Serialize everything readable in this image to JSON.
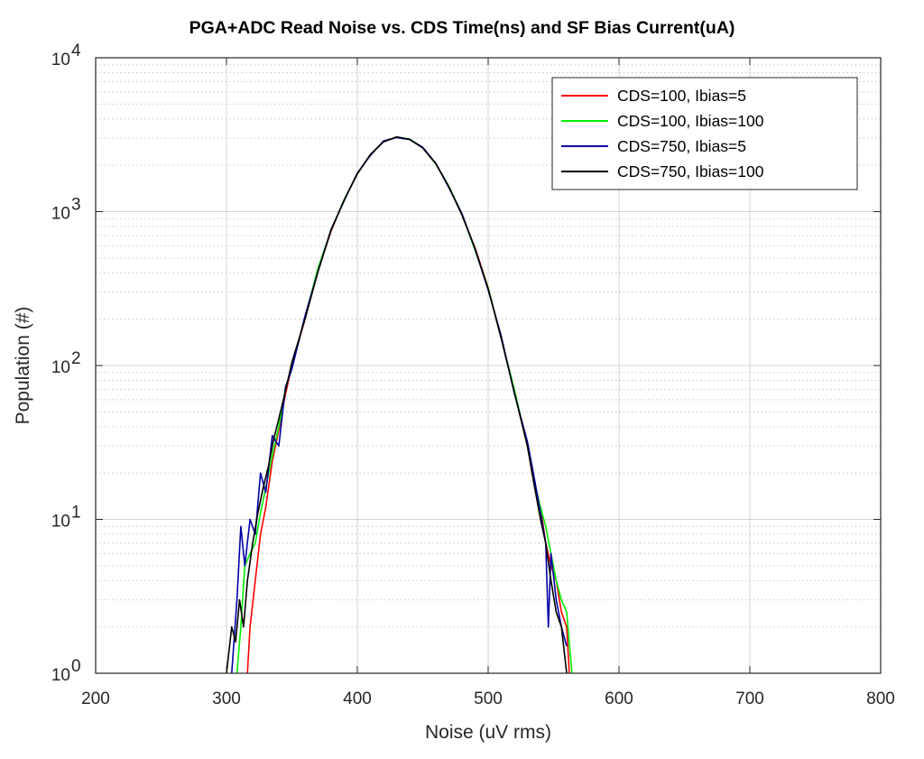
{
  "chart_data": {
    "type": "line",
    "title": "PGA+ADC Read Noise vs. CDS Time(ns) and SF Bias Current(uA)",
    "xlabel": "Noise (uV rms)",
    "ylabel": "Population (#)",
    "xlim": [
      200,
      800
    ],
    "ylim": [
      1,
      10000
    ],
    "yscale": "log",
    "grid": true,
    "minor_grid": true,
    "legend_position": "top-right",
    "x_ticks": [
      "200",
      "300",
      "400",
      "500",
      "600",
      "700",
      "800"
    ],
    "y_ticks": [
      {
        "base": "10",
        "exp": "0"
      },
      {
        "base": "10",
        "exp": "1"
      },
      {
        "base": "10",
        "exp": "2"
      },
      {
        "base": "10",
        "exp": "3"
      },
      {
        "base": "10",
        "exp": "4"
      }
    ],
    "series": [
      {
        "name": "CDS=100, Ibias=5",
        "color": "#ff0000",
        "x": [
          316,
          318,
          322,
          326,
          330,
          335,
          340,
          345,
          350,
          360,
          370,
          380,
          390,
          400,
          410,
          420,
          430,
          440,
          450,
          460,
          470,
          480,
          490,
          500,
          510,
          520,
          530,
          535,
          540,
          544,
          548,
          552,
          556,
          560,
          562
        ],
        "y": [
          1,
          2,
          4,
          8,
          12,
          24,
          38,
          65,
          100,
          200,
          420,
          750,
          1200,
          1750,
          2350,
          2850,
          3050,
          2950,
          2600,
          2050,
          1450,
          950,
          580,
          320,
          150,
          68,
          30,
          17,
          12,
          7,
          5,
          4,
          2.5,
          2,
          1
        ]
      },
      {
        "name": "CDS=100, Ibias=100",
        "color": "#00ee00",
        "x": [
          308,
          311,
          314,
          318,
          322,
          326,
          330,
          335,
          340,
          345,
          350,
          360,
          370,
          380,
          390,
          400,
          410,
          420,
          430,
          440,
          450,
          460,
          470,
          480,
          490,
          500,
          510,
          520,
          530,
          535,
          540,
          544,
          548,
          552,
          556,
          560,
          564
        ],
        "y": [
          1,
          2,
          5,
          6,
          7,
          11,
          16,
          26,
          40,
          70,
          100,
          205,
          430,
          760,
          1200,
          1760,
          2340,
          2860,
          3040,
          2960,
          2610,
          2040,
          1460,
          960,
          560,
          320,
          150,
          70,
          30,
          18,
          12,
          9,
          6,
          4,
          3,
          2.5,
          1
        ]
      },
      {
        "name": "CDS=750, Ibias=5",
        "color": "#0000a8",
        "x": [
          304,
          308,
          311,
          314,
          318,
          322,
          326,
          330,
          335,
          340,
          345,
          350,
          360,
          370,
          380,
          390,
          400,
          410,
          420,
          430,
          440,
          450,
          460,
          470,
          480,
          490,
          500,
          510,
          520,
          530,
          535,
          540,
          544,
          546,
          548,
          552,
          556,
          560
        ],
        "y": [
          1,
          3,
          9,
          5,
          10,
          8,
          20,
          15,
          35,
          30,
          72,
          95,
          210,
          410,
          770,
          1180,
          1780,
          2320,
          2880,
          3030,
          2940,
          2620,
          2060,
          1430,
          970,
          570,
          310,
          155,
          66,
          32,
          19,
          11,
          7,
          2,
          6,
          3,
          2,
          1.5
        ]
      },
      {
        "name": "CDS=750, Ibias=100",
        "color": "#000000",
        "x": [
          300,
          304,
          307,
          310,
          313,
          316,
          320,
          324,
          328,
          332,
          336,
          340,
          345,
          350,
          360,
          370,
          380,
          390,
          400,
          410,
          420,
          430,
          440,
          450,
          460,
          470,
          480,
          490,
          500,
          510,
          520,
          530,
          535,
          540,
          544,
          548,
          552,
          556,
          560
        ],
        "y": [
          1,
          2,
          1.6,
          3,
          2,
          4,
          7,
          11,
          16,
          22,
          33,
          45,
          68,
          105,
          200,
          410,
          760,
          1190,
          1770,
          2350,
          2840,
          3060,
          2950,
          2590,
          2050,
          1450,
          950,
          575,
          315,
          150,
          67,
          30,
          17,
          10,
          7,
          4,
          2.5,
          2,
          1
        ]
      }
    ]
  }
}
